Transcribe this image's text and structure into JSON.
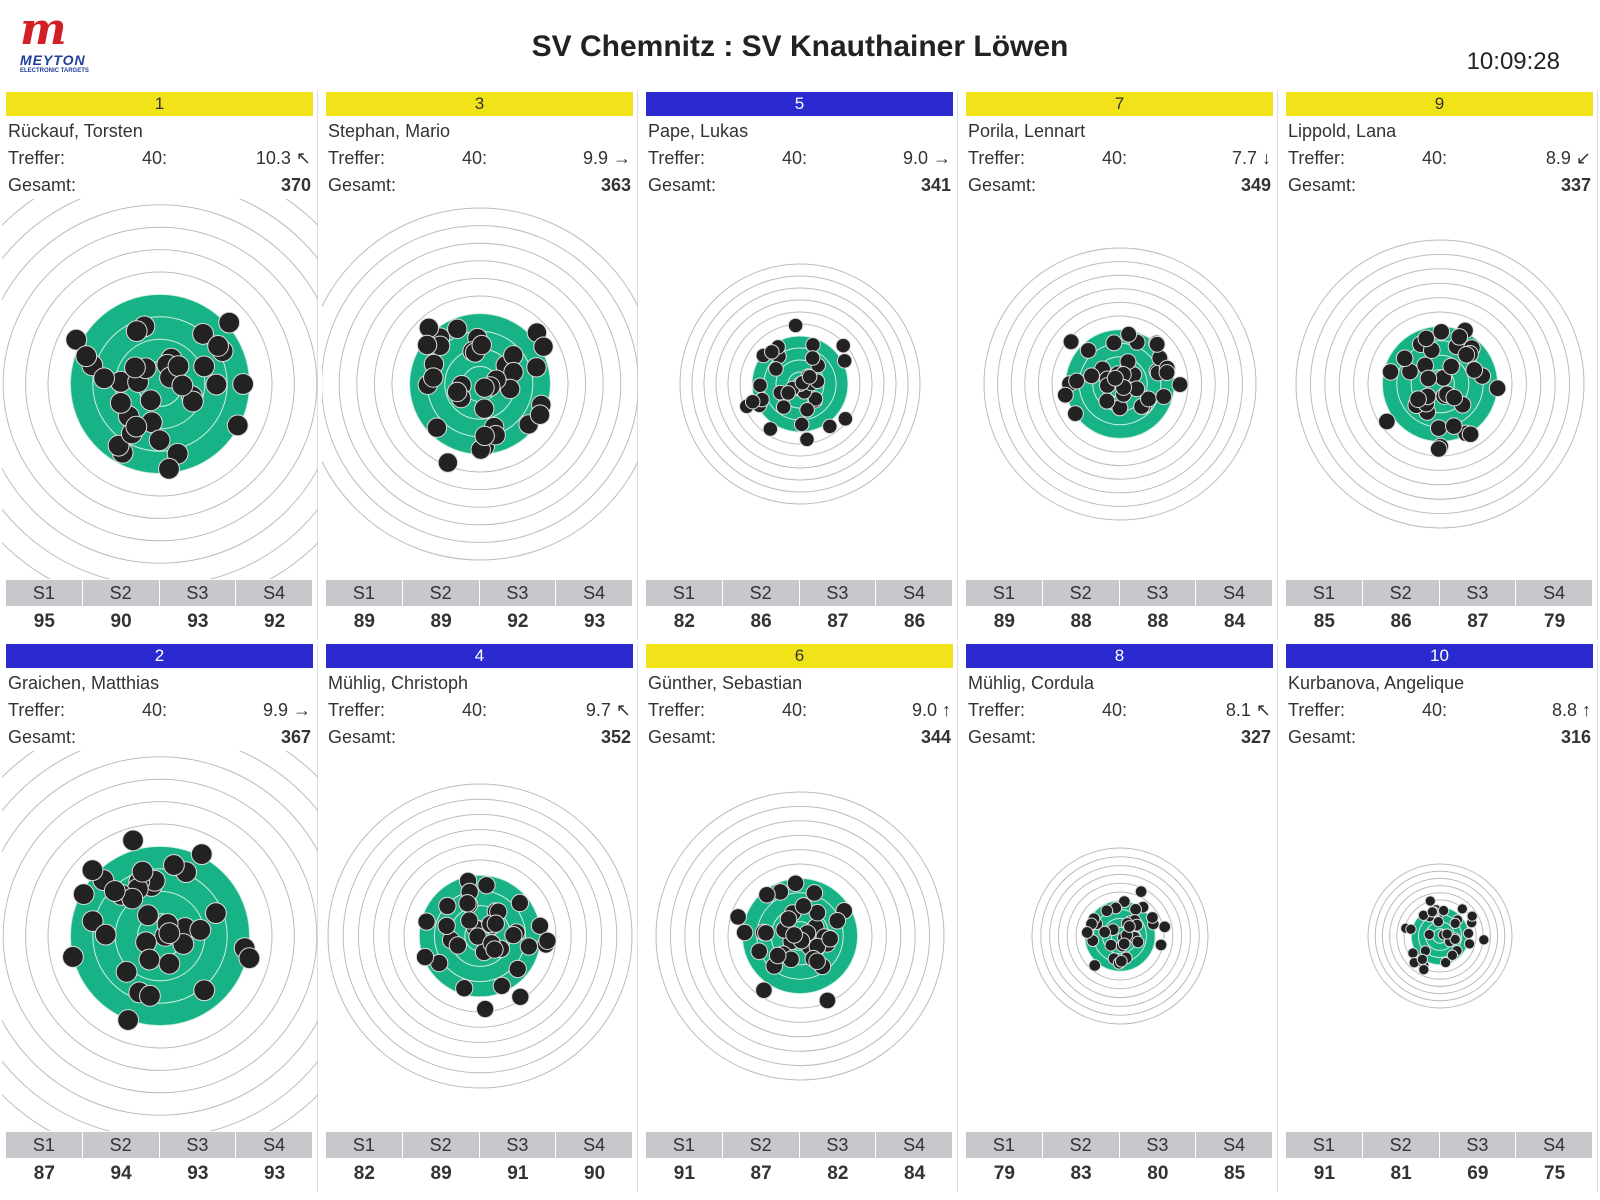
{
  "header": {
    "logo": "MEYTON",
    "logo_sub": "ELECTRONIC TARGETS",
    "title": "SV Chemnitz : SV Knauthainer Löwen",
    "clock": "10:09:28"
  },
  "labels": {
    "hits": "Treffer:",
    "total": "Gesamt:",
    "series": [
      "S1",
      "S2",
      "S3",
      "S4"
    ]
  },
  "lanes": [
    {
      "lane": "1",
      "color": "#f2e21a",
      "name": "Rückauf, Torsten",
      "shots": "40:",
      "last_shot": "10.3 ↖",
      "total": "370",
      "series": [
        "95",
        "90",
        "93",
        "92"
      ]
    },
    {
      "lane": "3",
      "color": "#f2e21a",
      "name": "Stephan, Mario",
      "shots": "40:",
      "last_shot": "9.9 →",
      "total": "363",
      "series": [
        "89",
        "89",
        "92",
        "93"
      ]
    },
    {
      "lane": "5",
      "color": "#2a2ad0",
      "name": "Pape, Lukas",
      "shots": "40:",
      "last_shot": "9.0 →",
      "total": "341",
      "series": [
        "82",
        "86",
        "87",
        "86"
      ]
    },
    {
      "lane": "7",
      "color": "#f2e21a",
      "name": "Porila, Lennart",
      "shots": "40:",
      "last_shot": "7.7 ↓",
      "total": "349",
      "series": [
        "89",
        "88",
        "88",
        "84"
      ]
    },
    {
      "lane": "9",
      "color": "#f2e21a",
      "name": "Lippold, Lana",
      "shots": "40:",
      "last_shot": "8.9 ↙",
      "total": "337",
      "series": [
        "85",
        "86",
        "87",
        "79"
      ]
    },
    {
      "lane": "2",
      "color": "#2a2ad0",
      "name": "Graichen, Matthias",
      "shots": "40:",
      "last_shot": "9.9 →",
      "total": "367",
      "series": [
        "87",
        "94",
        "93",
        "93"
      ]
    },
    {
      "lane": "4",
      "color": "#2a2ad0",
      "name": "Mühlig, Christoph",
      "shots": "40:",
      "last_shot": "9.7 ↖",
      "total": "352",
      "series": [
        "82",
        "89",
        "91",
        "90"
      ]
    },
    {
      "lane": "6",
      "color": "#f2e21a",
      "name": "Günther, Sebastian",
      "shots": "40:",
      "last_shot": "9.0 ↑",
      "total": "344",
      "series": [
        "91",
        "87",
        "82",
        "84"
      ]
    },
    {
      "lane": "8",
      "color": "#2a2ad0",
      "name": "Mühlig, Cordula",
      "shots": "40:",
      "last_shot": "8.1 ↖",
      "total": "327",
      "series": [
        "79",
        "83",
        "80",
        "85"
      ]
    },
    {
      "lane": "10",
      "color": "#2a2ad0",
      "name": "Kurbanova, Angelique",
      "shots": "40:",
      "last_shot": "8.8 ↑",
      "total": "316",
      "series": [
        "91",
        "81",
        "69",
        "75"
      ]
    }
  ]
}
